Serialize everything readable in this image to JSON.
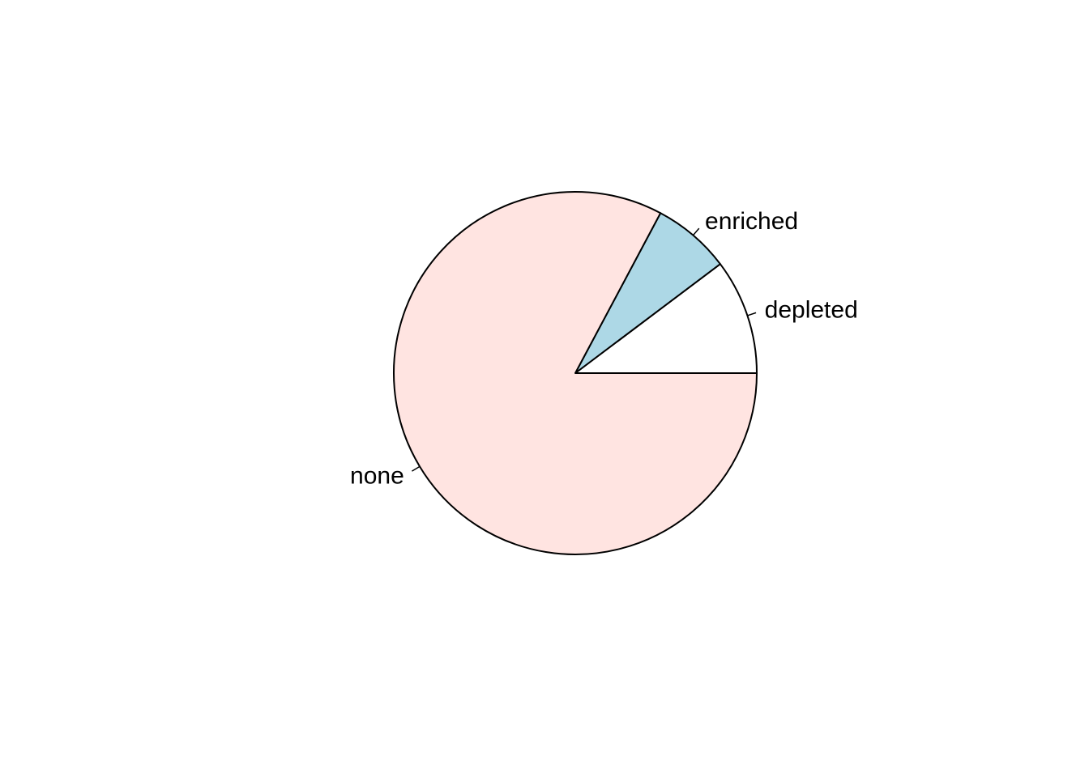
{
  "chart_data": {
    "type": "pie",
    "title": "",
    "start_angle_deg": 0,
    "direction": "counterclockwise",
    "slices": [
      {
        "label": "depleted",
        "value": 37,
        "color": "#FFFFFF"
      },
      {
        "label": "enriched",
        "value": 25,
        "color": "#ADD8E6"
      },
      {
        "label": "none",
        "value": 298,
        "color": "#FFE4E1"
      }
    ],
    "border_color": "#000000",
    "legend": "none"
  }
}
